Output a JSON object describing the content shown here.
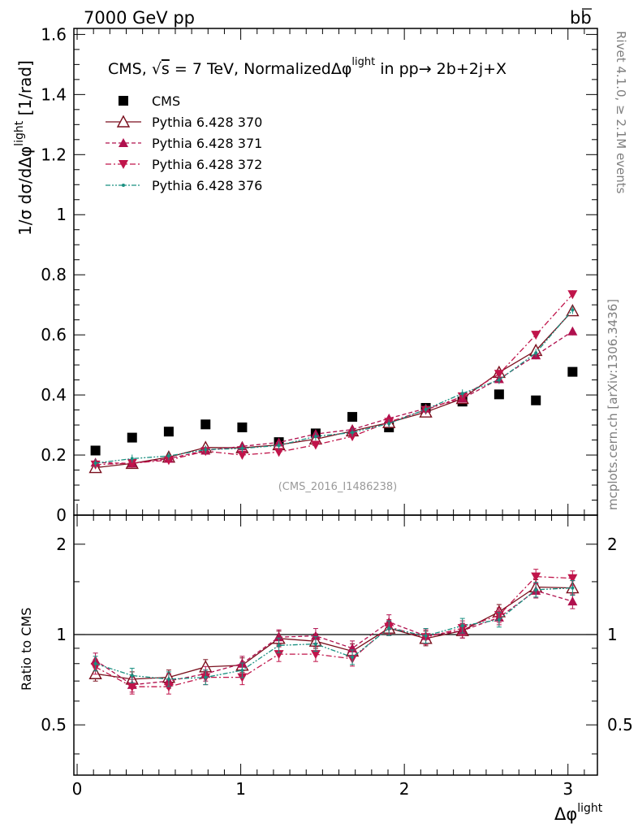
{
  "header": {
    "left": "7000 GeV pp",
    "right_b": "b",
    "right_bbar": "b"
  },
  "side_labels": {
    "rivet": "Rivet 4.1.0, ≥ 2.1M events",
    "mcplots": "mcplots.cern.ch [arXiv:1306.3436]"
  },
  "chart_data": {
    "type": "scatter",
    "title": "CMS, √s = 7 TeV, NormalizedΔφ^light in pp→ 2b+2j+X",
    "title_parts": {
      "a": "CMS, ",
      "sqrt": "√",
      "s": "s",
      "b": " = 7 TeV, NormalizedΔφ",
      "sup": "light",
      "c": " in pp→  2b+2j+X"
    },
    "analysis": "(CMS_2016_I1486238)",
    "xlabel": {
      "main": "Δφ",
      "sup": "light"
    },
    "ylabel": {
      "main": "1/σ dσ/dΔφ",
      "sup": "light",
      "unit": " [1/rad]"
    },
    "ratio_ylabel": "Ratio to CMS",
    "xlim": [
      -0.02,
      3.18
    ],
    "ylim": [
      0,
      1.62
    ],
    "ratio_ylim": [
      0.34,
      2.5
    ],
    "x_ticks": [
      "0",
      "1",
      "2",
      "3"
    ],
    "y_ticks": [
      "0",
      "0.2",
      "0.4",
      "0.6",
      "0.8",
      "1",
      "1.2",
      "1.4",
      "1.6"
    ],
    "ratio_ticks": [
      "0.5",
      "1",
      "2"
    ],
    "x": [
      0.112,
      0.336,
      0.56,
      0.785,
      1.009,
      1.233,
      1.458,
      1.682,
      1.906,
      2.131,
      2.355,
      2.579,
      2.804,
      3.028
    ],
    "series": [
      {
        "name": "CMS",
        "color": "#000000",
        "marker": "square",
        "line": "none",
        "values": [
          0.215,
          0.258,
          0.278,
          0.302,
          0.292,
          0.243,
          0.272,
          0.327,
          0.292,
          0.357,
          0.378,
          0.402,
          0.382,
          0.477
        ]
      },
      {
        "name": "Pythia 6.428 370",
        "color": "#7a0f1d",
        "marker": "open-triangle-up",
        "line": "solid",
        "values": [
          0.158,
          0.172,
          0.193,
          0.225,
          0.224,
          0.234,
          0.253,
          0.28,
          0.308,
          0.343,
          0.388,
          0.475,
          0.548,
          0.68
        ],
        "ratio": [
          0.74,
          0.71,
          0.72,
          0.78,
          0.79,
          0.97,
          0.95,
          0.88,
          1.05,
          0.97,
          1.03,
          1.19,
          1.44,
          1.43
        ]
      },
      {
        "name": "Pythia 6.428 371",
        "color": "#b0104e",
        "marker": "triangle-up",
        "line": "dashed",
        "values": [
          0.175,
          0.172,
          0.188,
          0.215,
          0.229,
          0.242,
          0.27,
          0.285,
          0.322,
          0.355,
          0.388,
          0.453,
          0.532,
          0.612
        ],
        "ratio": [
          0.82,
          0.68,
          0.7,
          0.74,
          0.8,
          0.98,
          0.99,
          0.9,
          1.1,
          0.99,
          1.03,
          1.14,
          1.4,
          1.29
        ]
      },
      {
        "name": "Pythia 6.428 372",
        "color": "#c0144a",
        "marker": "triangle-down",
        "line": "dashdot",
        "values": [
          0.168,
          0.173,
          0.183,
          0.213,
          0.2,
          0.21,
          0.234,
          0.262,
          0.31,
          0.35,
          0.395,
          0.47,
          0.6,
          0.735
        ],
        "ratio": [
          0.78,
          0.67,
          0.67,
          0.72,
          0.72,
          0.86,
          0.86,
          0.83,
          1.06,
          0.98,
          1.05,
          1.16,
          1.56,
          1.54
        ]
      },
      {
        "name": "Pythia 6.428 376",
        "color": "#1a9081",
        "marker": "small-dot",
        "line": "dashdotdot",
        "values": [
          0.173,
          0.188,
          0.197,
          0.218,
          0.222,
          0.232,
          0.262,
          0.275,
          0.305,
          0.352,
          0.405,
          0.45,
          0.54,
          0.683
        ],
        "ratio": [
          0.8,
          0.73,
          0.71,
          0.72,
          0.76,
          0.92,
          0.93,
          0.84,
          1.05,
          0.99,
          1.07,
          1.12,
          1.41,
          1.43
        ]
      }
    ]
  }
}
